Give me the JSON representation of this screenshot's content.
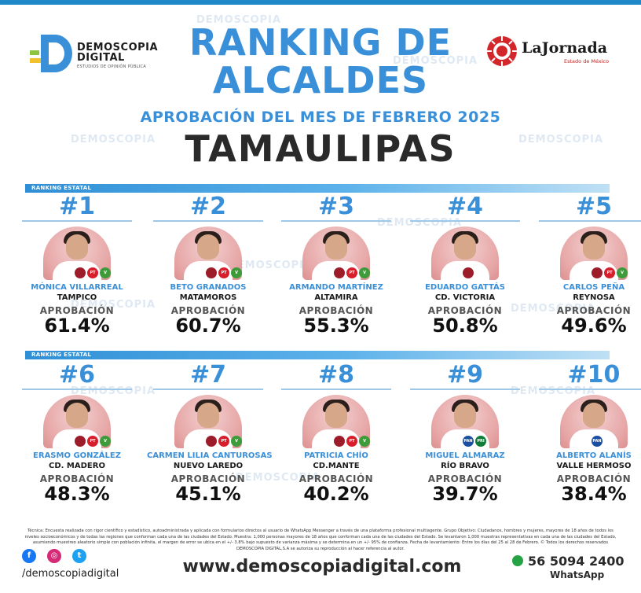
{
  "header": {
    "brand_name_line1": "DEMOSCOPIA",
    "brand_name_line2": "DIGITAL",
    "brand_tagline": "ESTUDIOS DE OPINIÓN PÚBLICA",
    "title_line1": "RANKING DE",
    "title_line2": "ALCALDES",
    "subtitle": "APROBACIÓN DEL MES DE FEBRERO 2025",
    "state": "TAMAULIPAS",
    "partner_name": "LaJornada",
    "partner_sub": "Estado de México"
  },
  "sections": {
    "top_label": "RANKING ESTATAL",
    "bottom_label": "RANKING ESTATAL"
  },
  "approval_label": "APROBACIÓN",
  "mayors": [
    {
      "rank": "#1",
      "name": "MÓNICA VILLARREAL",
      "city": "TAMPICO",
      "approval": "61.4%",
      "badges": [
        "",
        "PT",
        "V"
      ]
    },
    {
      "rank": "#2",
      "name": "BETO GRANADOS",
      "city": "MATAMOROS",
      "approval": "60.7%",
      "badges": [
        "",
        "PT",
        "V"
      ]
    },
    {
      "rank": "#3",
      "name": "ARMANDO MARTÍNEZ",
      "city": "ALTAMIRA",
      "approval": "55.3%",
      "badges": [
        "",
        "PT",
        "V"
      ]
    },
    {
      "rank": "#4",
      "name": "EDUARDO GATTÁS",
      "city": "CD. VICTORIA",
      "approval": "50.8%",
      "badges": [
        ""
      ]
    },
    {
      "rank": "#5",
      "name": "CARLOS PEÑA",
      "city": "REYNOSA",
      "approval": "49.6%",
      "badges": [
        "",
        "PT",
        "V"
      ]
    },
    {
      "rank": "#6",
      "name": "ERASMO GONZÁLEZ",
      "city": "CD. MADERO",
      "approval": "48.3%",
      "badges": [
        "",
        "PT",
        "V"
      ]
    },
    {
      "rank": "#7",
      "name": "CARMEN LILIA CANTUROSAS",
      "city": "NUEVO LAREDO",
      "approval": "45.1%",
      "badges": [
        "",
        "PT",
        "V"
      ]
    },
    {
      "rank": "#8",
      "name": "PATRICIA CHÍO",
      "city": "CD.MANTE",
      "approval": "40.2%",
      "badges": [
        "",
        "PT",
        "V"
      ]
    },
    {
      "rank": "#9",
      "name": "MIGUEL ALMARAZ",
      "city": "RÍO BRAVO",
      "approval": "39.7%",
      "badges": [
        "PAN",
        "PRI"
      ]
    },
    {
      "rank": "#10",
      "name": "ALBERTO ALANÍS",
      "city": "VALLE HERMOSO",
      "approval": "38.4%",
      "badges": [
        "PAN"
      ]
    }
  ],
  "footer": {
    "methodology": "Técnica: Encuesta realizada con rigor científico y estadístico, autoadministrada y aplicada con formularios directos al usuario de WhatsApp Messenger a través de una plataforma profesional multiagente. Grupo Objetivo: Ciudadanos, hombres y mujeres, mayores de 18 años de todos los niveles socioeconómicos y de todas las regiones que conforman cada una de las ciudades del Estado. Muestra: 1,000 personas mayores de 18 años que conforman cada una de las ciudades del Estado. Se levantaron 1,000 muestras representativas en cada una de las ciudades del Estado, asumiendo muestreo aleatorio simple con población infinita, el margen de error se ubica en el +/- 3.8% bajo supuesto de varianza máxima y se determina en un +/- 95% de confianza. Fecha de levantamiento: Entre los días del 25 al 28 de Febrero. © Todos los derechos reservados DEMOSCOPIA DIGITAL,S.A se autoriza su reproducción al hacer referencia al autor.",
    "handle": "/demoscopiadigital",
    "website": "www.demoscopiadigital.com",
    "phone": "56 5094 2400",
    "whatsapp_label": "WhatsApp"
  }
}
